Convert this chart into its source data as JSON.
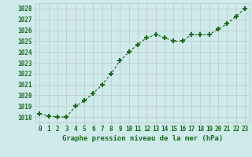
{
  "x": [
    0,
    1,
    2,
    3,
    4,
    5,
    6,
    7,
    8,
    9,
    10,
    11,
    12,
    13,
    14,
    15,
    16,
    17,
    18,
    19,
    20,
    21,
    22,
    23
  ],
  "y": [
    1018.3,
    1018.1,
    1018.0,
    1018.0,
    1019.0,
    1019.5,
    1020.2,
    1021.0,
    1022.0,
    1023.2,
    1024.0,
    1024.7,
    1025.3,
    1025.6,
    1025.3,
    1025.0,
    1025.0,
    1025.6,
    1025.6,
    1025.6,
    1026.1,
    1026.6,
    1027.3,
    1028.0
  ],
  "line_color": "#1a6b1a",
  "marker": "+",
  "marker_size": 5,
  "marker_lw": 1.5,
  "bg_color": "#ceeaea",
  "grid_color_major": "#c0c8c8",
  "grid_color_minor": "#dde8e8",
  "xlabel": "Graphe pression niveau de la mer (hPa)",
  "ylabel_ticks": [
    1018,
    1019,
    1020,
    1021,
    1022,
    1023,
    1024,
    1025,
    1026,
    1027,
    1028
  ],
  "ylim": [
    1017.5,
    1028.5
  ],
  "xlim": [
    -0.5,
    23.5
  ],
  "xtick_labels": [
    "0",
    "1",
    "2",
    "3",
    "4",
    "5",
    "6",
    "7",
    "8",
    "9",
    "10",
    "11",
    "12",
    "13",
    "14",
    "15",
    "16",
    "17",
    "18",
    "19",
    "20",
    "21",
    "22",
    "23"
  ],
  "tick_color": "#1a6b1a",
  "xlabel_fontsize": 6.5,
  "tick_fontsize": 5.5,
  "line_width": 0.8,
  "line_style_dash": [
    3,
    2
  ]
}
